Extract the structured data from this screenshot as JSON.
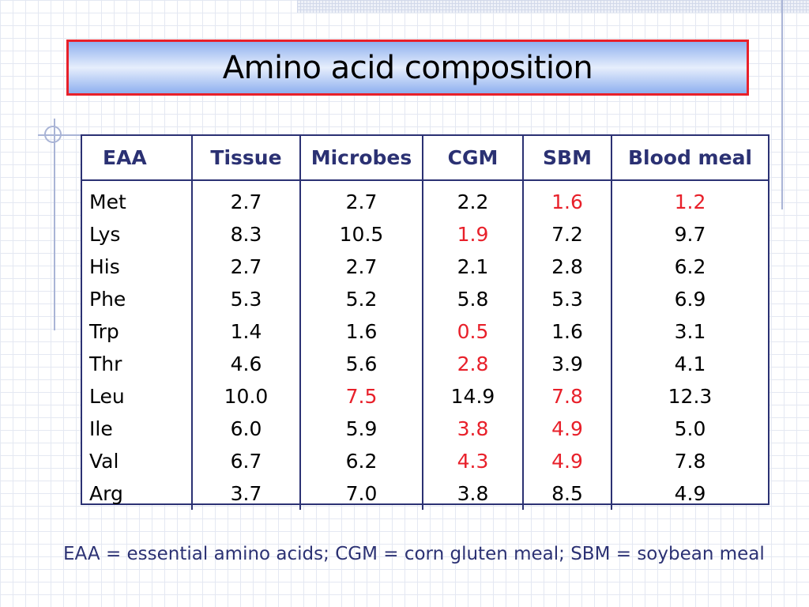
{
  "title": "Amino acid composition",
  "headers": [
    "EAA",
    "Tissue",
    "Microbes",
    "CGM",
    "SBM",
    "Blood meal"
  ],
  "rows": [
    [
      "Met",
      "2.7",
      "2.7",
      "2.2",
      "1.6",
      "1.2"
    ],
    [
      "Lys",
      "8.3",
      "10.5",
      "1.9",
      "7.2",
      "9.7"
    ],
    [
      "His",
      "2.7",
      "2.7",
      "2.1",
      "2.8",
      "6.2"
    ],
    [
      "Phe",
      "5.3",
      "5.2",
      "5.8",
      "5.3",
      "6.9"
    ],
    [
      "Trp",
      "1.4",
      "1.6",
      "0.5",
      "1.6",
      "3.1"
    ],
    [
      "Thr",
      "4.6",
      "5.6",
      "2.8",
      "3.9",
      "4.1"
    ],
    [
      "Leu",
      "10.0",
      "7.5",
      "14.9",
      "7.8",
      "12.3"
    ],
    [
      "Ile",
      "6.0",
      "5.9",
      "3.8",
      "4.9",
      "5.0"
    ],
    [
      "Val",
      "6.7",
      "6.2",
      "4.3",
      "4.9",
      "7.8"
    ],
    [
      "Arg",
      "3.7",
      "7.0",
      "3.8",
      "8.5",
      "4.9"
    ]
  ],
  "highlighted": [
    [
      false,
      false,
      false,
      false,
      true,
      true
    ],
    [
      false,
      false,
      false,
      true,
      false,
      false
    ],
    [
      false,
      false,
      false,
      false,
      false,
      false
    ],
    [
      false,
      false,
      false,
      false,
      false,
      false
    ],
    [
      false,
      false,
      false,
      true,
      false,
      false
    ],
    [
      false,
      false,
      false,
      true,
      false,
      false
    ],
    [
      false,
      false,
      true,
      false,
      true,
      false
    ],
    [
      false,
      false,
      false,
      true,
      true,
      false
    ],
    [
      false,
      false,
      false,
      true,
      true,
      false
    ],
    [
      false,
      false,
      false,
      false,
      false,
      false
    ]
  ],
  "footnote": "EAA = essential amino acids; CGM = corn gluten meal; SBM = soybean meal",
  "colors": {
    "text_blue": "#2b3173",
    "highlight_red": "#e8202a",
    "title_border": "#e8202a",
    "title_gradient": "#8fb0ef"
  }
}
